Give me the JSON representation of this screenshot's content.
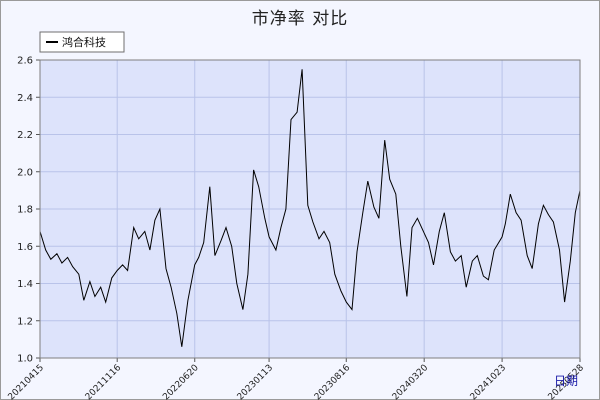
{
  "chart_data": {
    "type": "line",
    "title": "市净率 对比",
    "xlabel": "日期",
    "ylabel": "",
    "ylim": [
      1.0,
      2.6
    ],
    "yticks": [
      1.0,
      1.2,
      1.4,
      1.6,
      1.8,
      2.0,
      2.2,
      2.4,
      2.6
    ],
    "xticks": [
      "20210415",
      "20211116",
      "20220620",
      "20230113",
      "20230816",
      "20240320",
      "20241023",
      "20250528"
    ],
    "grid": true,
    "legend_placement": "top-left",
    "colors": {
      "plot_background": "#dde3fb",
      "page_background": "#f4f6ff",
      "grid": "#b9c3e9",
      "line": "#000000"
    },
    "series": [
      {
        "name": "鸿合科技",
        "points": [
          [
            "20210415",
            1.68
          ],
          [
            "20210501",
            1.58
          ],
          [
            "20210515",
            1.53
          ],
          [
            "20210601",
            1.56
          ],
          [
            "20210615",
            1.51
          ],
          [
            "20210701",
            1.54
          ],
          [
            "20210715",
            1.49
          ],
          [
            "20210801",
            1.45
          ],
          [
            "20210815",
            1.31
          ],
          [
            "20210901",
            1.41
          ],
          [
            "20210915",
            1.33
          ],
          [
            "20211001",
            1.38
          ],
          [
            "20211015",
            1.3
          ],
          [
            "20211101",
            1.43
          ],
          [
            "20211116",
            1.47
          ],
          [
            "20211201",
            1.5
          ],
          [
            "20211215",
            1.47
          ],
          [
            "20220101",
            1.7
          ],
          [
            "20220115",
            1.64
          ],
          [
            "20220201",
            1.68
          ],
          [
            "20220215",
            1.58
          ],
          [
            "20220301",
            1.74
          ],
          [
            "20220315",
            1.8
          ],
          [
            "20220401",
            1.48
          ],
          [
            "20220415",
            1.38
          ],
          [
            "20220501",
            1.24
          ],
          [
            "20220515",
            1.06
          ],
          [
            "20220601",
            1.31
          ],
          [
            "20220620",
            1.5
          ],
          [
            "20220701",
            1.54
          ],
          [
            "20220715",
            1.62
          ],
          [
            "20220801",
            1.92
          ],
          [
            "20220815",
            1.55
          ],
          [
            "20220901",
            1.63
          ],
          [
            "20220915",
            1.7
          ],
          [
            "20221001",
            1.6
          ],
          [
            "20221015",
            1.4
          ],
          [
            "20221101",
            1.26
          ],
          [
            "20221115",
            1.45
          ],
          [
            "20221201",
            2.01
          ],
          [
            "20221215",
            1.92
          ],
          [
            "20230101",
            1.75
          ],
          [
            "20230113",
            1.65
          ],
          [
            "20230201",
            1.58
          ],
          [
            "20230215",
            1.7
          ],
          [
            "20230301",
            1.8
          ],
          [
            "20230315",
            2.28
          ],
          [
            "20230401",
            2.32
          ],
          [
            "20230415",
            2.55
          ],
          [
            "20230501",
            1.82
          ],
          [
            "20230515",
            1.73
          ],
          [
            "20230601",
            1.64
          ],
          [
            "20230615",
            1.68
          ],
          [
            "20230701",
            1.62
          ],
          [
            "20230715",
            1.45
          ],
          [
            "20230801",
            1.36
          ],
          [
            "20230816",
            1.3
          ],
          [
            "20230901",
            1.26
          ],
          [
            "20230915",
            1.57
          ],
          [
            "20231001",
            1.78
          ],
          [
            "20231015",
            1.95
          ],
          [
            "20231101",
            1.81
          ],
          [
            "20231115",
            1.75
          ],
          [
            "20231201",
            2.17
          ],
          [
            "20231215",
            1.96
          ],
          [
            "20240101",
            1.88
          ],
          [
            "20240115",
            1.6
          ],
          [
            "20240201",
            1.33
          ],
          [
            "20240215",
            1.7
          ],
          [
            "20240301",
            1.75
          ],
          [
            "20240320",
            1.67
          ],
          [
            "20240401",
            1.62
          ],
          [
            "20240415",
            1.5
          ],
          [
            "20240501",
            1.68
          ],
          [
            "20240515",
            1.78
          ],
          [
            "20240601",
            1.57
          ],
          [
            "20240615",
            1.52
          ],
          [
            "20240701",
            1.55
          ],
          [
            "20240715",
            1.38
          ],
          [
            "20240801",
            1.52
          ],
          [
            "20240815",
            1.55
          ],
          [
            "20240901",
            1.44
          ],
          [
            "20240915",
            1.42
          ],
          [
            "20241001",
            1.58
          ],
          [
            "20241023",
            1.65
          ],
          [
            "20241101",
            1.72
          ],
          [
            "20241115",
            1.88
          ],
          [
            "20241201",
            1.78
          ],
          [
            "20241215",
            1.74
          ],
          [
            "20250101",
            1.55
          ],
          [
            "20250115",
            1.48
          ],
          [
            "20250201",
            1.72
          ],
          [
            "20250215",
            1.82
          ],
          [
            "20250301",
            1.77
          ],
          [
            "20250315",
            1.73
          ],
          [
            "20250401",
            1.58
          ],
          [
            "20250415",
            1.3
          ],
          [
            "20250501",
            1.52
          ],
          [
            "20250515",
            1.78
          ],
          [
            "20250528",
            1.9
          ],
          [
            "20250610",
            1.88
          ]
        ]
      }
    ]
  }
}
